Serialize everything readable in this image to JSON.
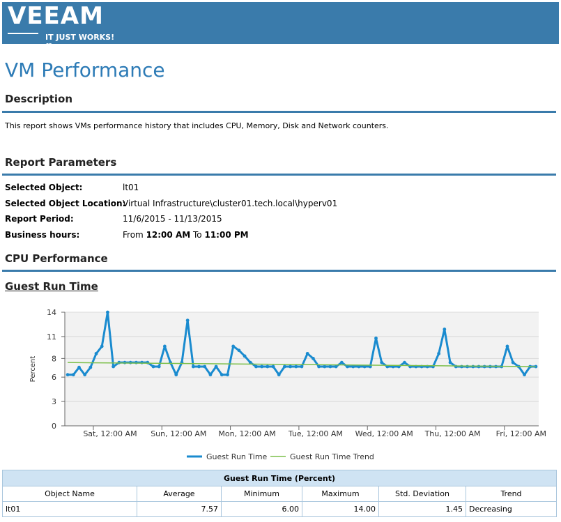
{
  "header": {
    "logo_text": "VEEAM",
    "logo_tagline": "IT JUST WORKS!™"
  },
  "page": {
    "title": "VM Performance"
  },
  "description": {
    "heading": "Description",
    "text": "This report shows VMs performance history that includes CPU, Memory, Disk and Network counters."
  },
  "parameters": {
    "heading": "Report Parameters",
    "selected_object_label": "Selected Object:",
    "selected_object_value": "lt01",
    "location_label": "Selected Object Location:",
    "location_value": "Virtual Infrastructure\\cluster01.tech.local\\hyperv01",
    "period_label": "Report Period:",
    "period_value": "11/6/2015 - 11/13/2015",
    "hours_label": "Business hours:",
    "hours_from": "From",
    "hours_start": "12:00 AM",
    "hours_to": "To",
    "hours_end": "11:00 PM"
  },
  "cpu": {
    "heading": "CPU Performance",
    "chart_heading": "Guest Run Time"
  },
  "chart_data": {
    "type": "line",
    "title": "Guest Run Time",
    "xlabel": "",
    "ylabel": "Percent",
    "ylim": [
      0,
      14
    ],
    "yticks": [
      "0",
      "3",
      "6",
      "8",
      "11",
      "14"
    ],
    "ytick_values": [
      0,
      3,
      6,
      8.3,
      11,
      14
    ],
    "xticks": [
      "Sat, 12:00 AM",
      "Sun, 12:00 AM",
      "Mon, 12:00 AM",
      "Tue, 12:00 AM",
      "Wed, 12:00 AM",
      "Thu, 12:00 AM",
      "Fri, 12:00 AM"
    ],
    "xtick_hours": [
      10,
      34,
      58,
      82,
      106,
      130,
      154
    ],
    "x_range_hours": [
      0,
      166
    ],
    "grid": true,
    "legend": "bottom",
    "series": [
      {
        "name": "Guest Run Time",
        "color": "#1a8bcf",
        "x_hours": [
          1,
          3,
          5,
          7,
          9,
          11,
          13,
          15,
          17,
          19,
          21,
          23,
          25,
          27,
          29,
          31,
          33,
          35,
          37,
          39,
          41,
          43,
          45,
          47,
          49,
          51,
          53,
          55,
          57,
          59,
          61,
          63,
          65,
          67,
          69,
          71,
          73,
          75,
          77,
          79,
          81,
          83,
          85,
          87,
          89,
          91,
          93,
          95,
          97,
          99,
          101,
          103,
          105,
          107,
          109,
          111,
          113,
          115,
          117,
          119,
          121,
          123,
          125,
          127,
          129,
          131,
          133,
          135,
          137,
          139,
          141,
          143,
          145,
          147,
          149,
          151,
          153,
          155,
          157,
          159,
          161,
          163,
          165
        ],
        "values": [
          6.3,
          6.3,
          7.2,
          6.3,
          7.2,
          8.9,
          9.8,
          14,
          7.3,
          7.8,
          7.8,
          7.8,
          7.8,
          7.8,
          7.8,
          7.3,
          7.3,
          9.8,
          7.8,
          6.3,
          7.8,
          13,
          7.3,
          7.3,
          7.3,
          6.3,
          7.3,
          6.3,
          6.3,
          9.8,
          9.3,
          8.6,
          7.8,
          7.3,
          7.3,
          7.3,
          7.3,
          6.3,
          7.3,
          7.3,
          7.3,
          7.3,
          8.9,
          8.3,
          7.3,
          7.3,
          7.3,
          7.3,
          7.8,
          7.3,
          7.3,
          7.3,
          7.3,
          7.3,
          10.8,
          7.8,
          7.3,
          7.3,
          7.3,
          7.8,
          7.3,
          7.3,
          7.3,
          7.3,
          7.3,
          8.9,
          11.9,
          7.8,
          7.3,
          7.3,
          7.3,
          7.3,
          7.3,
          7.3,
          7.3,
          7.3,
          7.3,
          9.8,
          7.8,
          7.3,
          6.3,
          7.3,
          7.3
        ]
      },
      {
        "name": "Guest Run Time Trend",
        "color": "#7cbf4a",
        "x_hours": [
          1,
          165
        ],
        "values": [
          7.8,
          7.3
        ]
      }
    ]
  },
  "table": {
    "caption": "Guest Run Time (Percent)",
    "headers": [
      "Object Name",
      "Average",
      "Minimum",
      "Maximum",
      "Std. Deviation",
      "Trend"
    ],
    "rows": [
      [
        "lt01",
        "7.57",
        "6.00",
        "14.00",
        "1.45",
        "Decreasing"
      ]
    ]
  }
}
